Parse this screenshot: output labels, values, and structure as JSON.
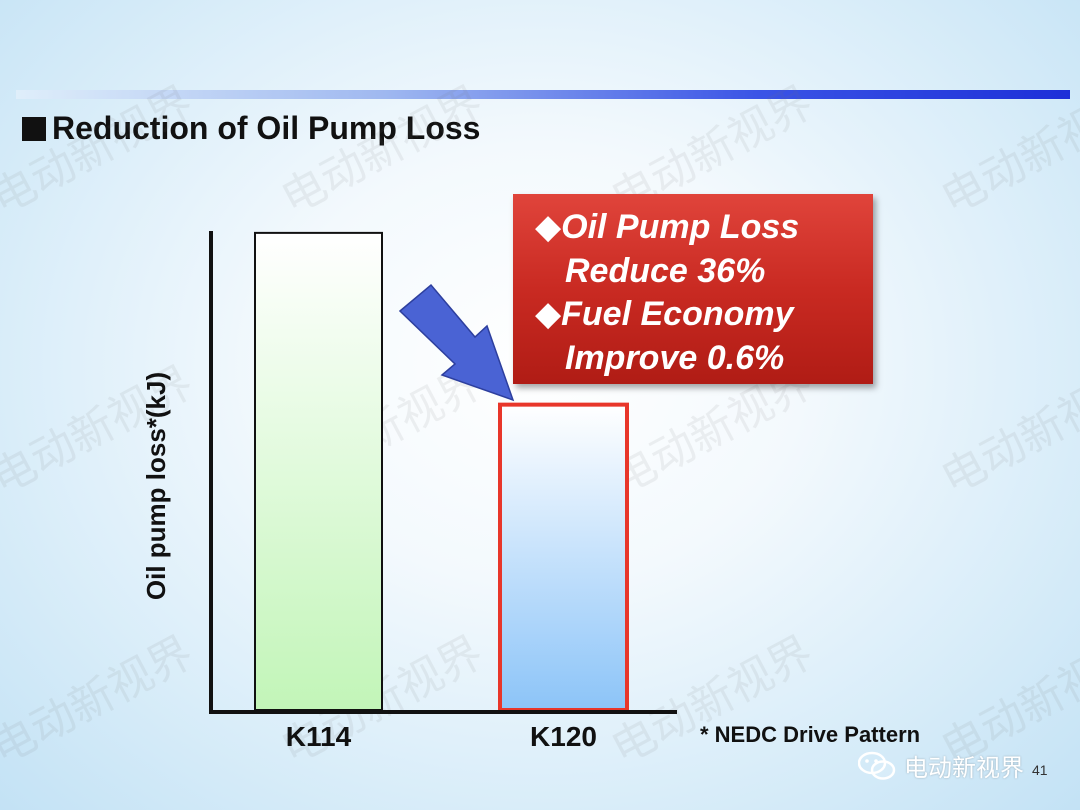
{
  "title": "Reduction of Oil Pump Loss",
  "callout": {
    "lines": [
      "◆Oil Pump Loss",
      "Reduce 36%",
      "◆Fuel Economy",
      "Improve 0.6%"
    ]
  },
  "note": "* NEDC Drive Pattern",
  "watermark_text": "电动新视界",
  "page_number": "41",
  "colors": {
    "callout_bg": "#c92a22",
    "arrow": "#4a63d4",
    "bar_k114_outline": "#111111",
    "bar_k120_outline": "#e8362a"
  },
  "chart_data": {
    "type": "bar",
    "categories": [
      "K114",
      "K120"
    ],
    "values": [
      100,
      64
    ],
    "ylabel": "Oil pump loss*(kJ)",
    "ylim": [
      0,
      118
    ],
    "grid": false,
    "y_ticks": "none",
    "annotation": "Oil Pump Loss Reduce 36%"
  }
}
